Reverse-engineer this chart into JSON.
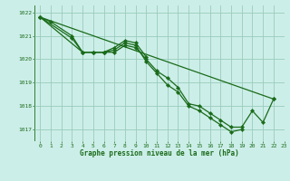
{
  "title": "Graphe pression niveau de la mer (hPa)",
  "bg_color": "#cceee8",
  "grid_color": "#99ccbb",
  "line_color": "#1a6b1a",
  "marker_color": "#1a6b1a",
  "xlim": [
    -0.5,
    23
  ],
  "ylim": [
    1016.5,
    1022.3
  ],
  "yticks": [
    1017,
    1018,
    1019,
    1020,
    1021,
    1022
  ],
  "xticks": [
    0,
    1,
    2,
    3,
    4,
    5,
    6,
    7,
    8,
    9,
    10,
    11,
    12,
    13,
    14,
    15,
    16,
    17,
    18,
    19,
    20,
    21,
    22,
    23
  ],
  "series1_x": [
    0,
    1,
    3,
    4,
    5,
    6,
    7,
    8,
    9,
    10,
    11,
    12,
    13,
    14,
    15,
    16,
    17,
    18,
    19,
    20,
    21,
    22
  ],
  "series1_y": [
    1021.8,
    1021.6,
    1021.0,
    1020.3,
    1020.3,
    1020.3,
    1020.3,
    1020.6,
    1020.5,
    1020.0,
    1019.5,
    1019.2,
    1018.8,
    1018.1,
    1018.0,
    1017.7,
    1017.4,
    1017.1,
    1017.1,
    1017.8,
    1017.3,
    1018.3
  ],
  "series2_x": [
    0,
    3,
    4,
    5,
    6,
    7,
    8,
    9,
    10,
    11,
    12,
    13,
    14,
    15,
    16,
    17,
    18,
    19
  ],
  "series2_y": [
    1021.8,
    1020.9,
    1020.3,
    1020.3,
    1020.3,
    1020.4,
    1020.7,
    1020.6,
    1019.9,
    1019.4,
    1018.9,
    1018.6,
    1018.0,
    1017.8,
    1017.5,
    1017.2,
    1016.9,
    1017.0
  ],
  "series3_x": [
    0,
    4,
    5,
    6,
    7,
    8,
    9,
    10
  ],
  "series3_y": [
    1021.8,
    1020.3,
    1020.3,
    1020.3,
    1020.5,
    1020.8,
    1020.7,
    1020.1
  ],
  "series4_x": [
    0,
    22
  ],
  "series4_y": [
    1021.8,
    1018.3
  ],
  "tick_fontsize": 4.5,
  "label_fontsize": 5.5,
  "linewidth": 0.9,
  "markersize": 2.2
}
